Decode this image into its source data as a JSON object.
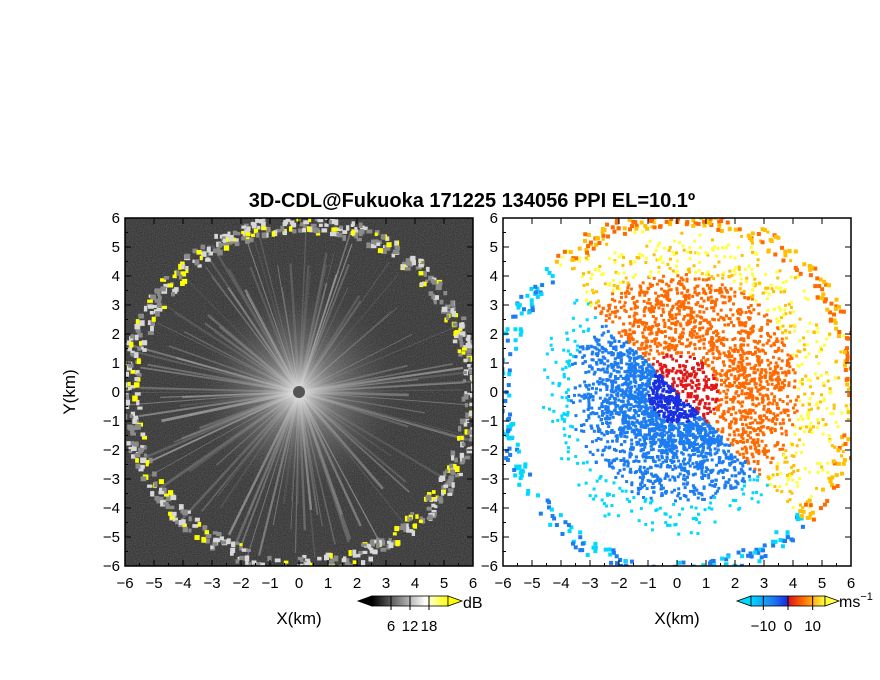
{
  "chart_data": [
    {
      "type": "heatmap",
      "title": "3D-CDL@Fukuoka 171225 134056 PPI EL=10.1º",
      "panel": "reflectivity",
      "xlabel": "X(km)",
      "ylabel": "Y(km)",
      "xlim": [
        -6,
        6
      ],
      "ylim": [
        -6,
        6
      ],
      "ticks": [
        -6,
        -5,
        -4,
        -3,
        -2,
        -1,
        0,
        1,
        2,
        3,
        4,
        5,
        6
      ],
      "colorbar": {
        "unit": "dB",
        "ticks": [
          6,
          12,
          18
        ],
        "range": [
          0,
          24
        ],
        "colors": [
          "#000000",
          "#ffffff",
          "#ffff00"
        ]
      },
      "colormap": "grayscale"
    },
    {
      "type": "heatmap",
      "panel": "doppler-velocity",
      "xlabel": "X(km)",
      "xlim": [
        -6,
        6
      ],
      "ylim": [
        -6,
        6
      ],
      "ticks": [
        -6,
        -5,
        -4,
        -3,
        -2,
        -1,
        0,
        1,
        2,
        3,
        4,
        5,
        6
      ],
      "colorbar": {
        "unit": "ms",
        "unit_sup": "−1",
        "ticks": [
          -10,
          0,
          10
        ],
        "range": [
          -15,
          15
        ],
        "colors": [
          "#00d8ff",
          "#1c7cf0",
          "#1830e0",
          "#e01818",
          "#ff6a00",
          "#ffc000",
          "#ffff40"
        ]
      },
      "colormap": "blue-red-yellow"
    }
  ]
}
